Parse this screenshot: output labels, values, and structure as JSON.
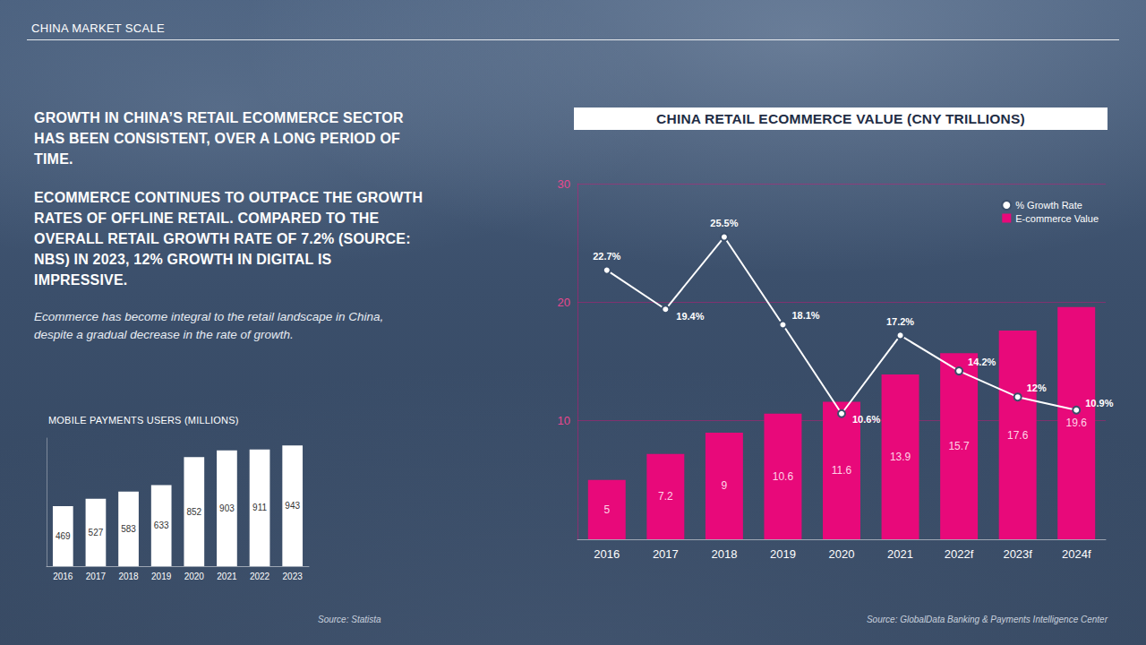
{
  "header": "CHINA MARKET SCALE",
  "text": {
    "headline_1": "GROWTH IN CHINA’S RETAIL ECOMMERCE SECTOR HAS BEEN CONSISTENT, OVER A LONG PERIOD OF TIME.",
    "headline_2": "ECOMMERCE CONTINUES TO OUTPACE THE GROWTH RATES OF OFFLINE RETAIL. COMPARED TO THE OVERALL RETAIL GROWTH RATE OF 7.2% (SOURCE: NBS) IN 2023, 12% GROWTH IN DIGITAL IS IMPRESSIVE.",
    "note": "Ecommerce has become integral to the retail landscape in China, despite a gradual decrease in the rate of growth."
  },
  "sources": [
    "Source: Statista",
    "Source: GlobalData Banking & Payments Intelligence Center"
  ],
  "chart_data": [
    {
      "type": "bar",
      "title": "CHINA RETAIL ECOMMERCE VALUE (CNY TRILLIONS)",
      "categories": [
        "2016",
        "2017",
        "2018",
        "2019",
        "2020",
        "2021",
        "2022f",
        "2023f",
        "2024f"
      ],
      "series": [
        {
          "name": "% Growth Rate",
          "type": "line",
          "color": "#ffffff",
          "marker": "circle",
          "values": [
            22.7,
            19.4,
            25.5,
            18.1,
            10.6,
            17.2,
            14.2,
            12,
            10.9
          ],
          "value_labels": [
            "22.7%",
            "19.4%",
            "25.5%",
            "18.1%",
            "10.6%",
            "17.2%",
            "14.2%",
            "12%",
            "10.9%"
          ]
        },
        {
          "name": "E-commerce Value",
          "type": "bar",
          "color": "#e8097a",
          "values": [
            5,
            7.2,
            9,
            10.6,
            11.6,
            13.9,
            15.7,
            17.6,
            19.6
          ]
        }
      ],
      "ylim": [
        0,
        30
      ],
      "yticks": [
        10,
        20,
        30
      ],
      "grid": true,
      "legend": "top-right",
      "data_labels": true
    },
    {
      "type": "bar",
      "title": "MOBILE PAYMENTS USERS (MILLIONS)",
      "categories": [
        "2016",
        "2017",
        "2018",
        "2019",
        "2020",
        "2021",
        "2022",
        "2023"
      ],
      "values": [
        469,
        527,
        583,
        633,
        852,
        903,
        911,
        943
      ],
      "color": "#ffffff",
      "ylim": [
        0,
        1000
      ],
      "grid": false,
      "data_labels": true,
      "tick_labels": "x"
    }
  ]
}
